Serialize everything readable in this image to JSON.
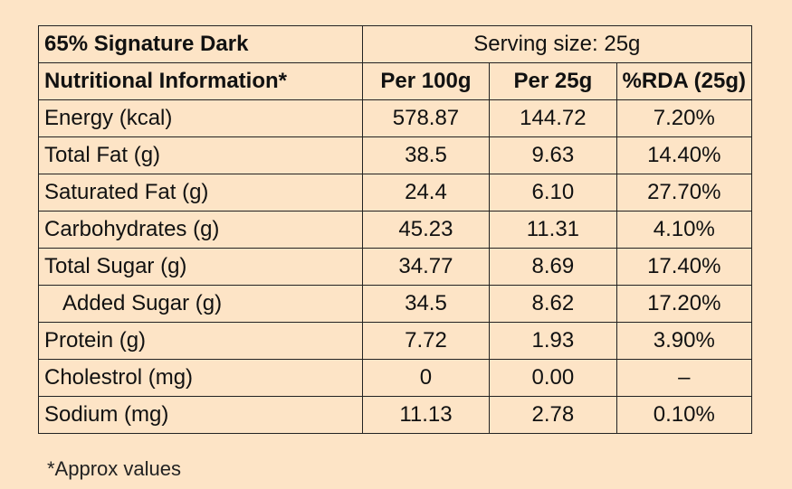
{
  "header": {
    "title": "65% Signature Dark",
    "serving": "Serving size: 25g"
  },
  "table": {
    "columns": [
      "Nutritional Information*",
      "Per 100g",
      "Per 25g",
      "%RDA (25g)"
    ],
    "rows": [
      [
        "Energy (kcal)",
        "578.87",
        "144.72",
        "7.20%"
      ],
      [
        "Total Fat (g)",
        "38.5",
        "9.63",
        "14.40%"
      ],
      [
        "Saturated Fat (g)",
        "24.4",
        "6.10",
        "27.70%"
      ],
      [
        "Carbohydrates (g)",
        "45.23",
        "11.31",
        "4.10%"
      ],
      [
        "Total Sugar (g)",
        "34.77",
        "8.69",
        "17.40%"
      ],
      [
        "Added Sugar (g)",
        "34.5",
        "8.62",
        "17.20%"
      ],
      [
        "Protein (g)",
        "7.72",
        "1.93",
        "3.90%"
      ],
      [
        "Cholestrol (mg)",
        "0",
        "0.00",
        "–"
      ],
      [
        "Sodium (mg)",
        "11.13",
        "2.78",
        "0.10%"
      ]
    ]
  },
  "footnote": "*Approx values"
}
